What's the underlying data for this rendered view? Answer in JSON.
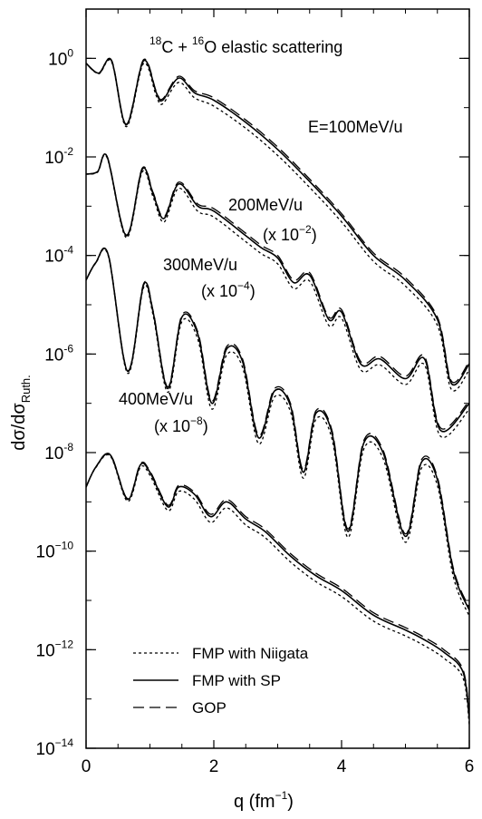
{
  "chart_data": {
    "type": "line",
    "title": {
      "pre": "",
      "sup1": "18",
      "mid": "C + ",
      "sup2": "16",
      "post": "O elastic scattering"
    },
    "xlabel": {
      "main": "q (fm",
      "sup": "−1",
      "post": ")"
    },
    "ylabel": {
      "main": "dσ/dσ",
      "sub": "Ruth."
    },
    "xlim": [
      0,
      6
    ],
    "ylim_log10": [
      -14,
      1
    ],
    "log_y": true,
    "grid": false,
    "x_ticks": [
      "0",
      "2",
      "4",
      "6"
    ],
    "y_ticks": [
      {
        "base": "10",
        "exp": "0"
      },
      {
        "base": "10",
        "exp": "-2"
      },
      {
        "base": "10",
        "exp": "-4"
      },
      {
        "base": "10",
        "exp": "-6"
      },
      {
        "base": "10",
        "exp": "-8"
      },
      {
        "base": "10",
        "exp": "−10"
      },
      {
        "base": "10",
        "exp": "−12"
      },
      {
        "base": "10",
        "exp": "−14"
      }
    ],
    "legend": {
      "placement": "bottom-left",
      "entries": [
        "FMP with Niigata",
        "FMP with SP",
        "GOP"
      ]
    },
    "annotations": [
      {
        "text": "E=100MeV/u"
      },
      {
        "text": "200MeV/u"
      },
      {
        "pre": "(x 10",
        "sup": "−2",
        "post": ")"
      },
      {
        "text": "300MeV/u"
      },
      {
        "pre": "(x 10",
        "sup": "−4",
        "post": ")"
      },
      {
        "text": "400MeV/u"
      },
      {
        "pre": "(x 10",
        "sup": "−8",
        "post": ")"
      }
    ],
    "series": [
      {
        "energy": "E=100MeV/u",
        "scale": 1,
        "x": [
          0.0,
          0.2,
          0.4,
          0.63,
          0.9,
          1.1,
          1.2,
          1.45,
          1.7,
          2.0,
          2.5,
          3.0,
          3.5,
          4.0,
          4.5,
          5.0,
          5.5,
          5.72,
          6.0
        ],
        "log10_y": [
          -0.1,
          -0.3,
          -0.05,
          -1.35,
          -0.05,
          -0.7,
          -0.85,
          -0.4,
          -0.7,
          -0.85,
          -1.3,
          -1.85,
          -2.5,
          -3.2,
          -4.0,
          -4.5,
          -5.3,
          -6.6,
          -6.2
        ]
      },
      {
        "energy": "200MeV/u",
        "scale": 0.01,
        "x": [
          0.0,
          0.18,
          0.33,
          0.63,
          0.88,
          1.05,
          1.22,
          1.45,
          1.75,
          2.0,
          2.5,
          2.75,
          3.0,
          3.25,
          3.5,
          3.8,
          4.0,
          4.3,
          4.6,
          5.0,
          5.3,
          5.55,
          6.0
        ],
        "log10_y": [
          -2.35,
          -2.3,
          -2.0,
          -3.6,
          -2.25,
          -2.75,
          -3.25,
          -2.55,
          -3.0,
          -3.1,
          -3.6,
          -3.85,
          -4.05,
          -4.55,
          -4.4,
          -5.3,
          -5.15,
          -6.2,
          -6.1,
          -6.5,
          -6.1,
          -7.55,
          -7.0
        ]
      },
      {
        "energy": "300MeV/u",
        "scale": 0.0001,
        "x": [
          0.0,
          0.15,
          0.35,
          0.65,
          0.9,
          1.05,
          1.28,
          1.5,
          1.75,
          1.97,
          2.2,
          2.45,
          2.7,
          2.95,
          3.2,
          3.4,
          3.6,
          3.85,
          4.1,
          4.35,
          4.65,
          5.0,
          5.25,
          5.5,
          5.75,
          6.0
        ],
        "log10_y": [
          -4.5,
          -4.15,
          -4.0,
          -6.35,
          -4.6,
          -5.15,
          -6.7,
          -5.25,
          -5.6,
          -7.0,
          -5.9,
          -6.15,
          -7.7,
          -6.75,
          -7.05,
          -8.4,
          -7.2,
          -7.6,
          -9.6,
          -7.8,
          -8.0,
          -9.7,
          -8.2,
          -8.55,
          -10.4,
          -11.2
        ]
      },
      {
        "energy": "400MeV/u",
        "scale": 1e-08,
        "x": [
          0.0,
          0.15,
          0.38,
          0.65,
          0.85,
          1.0,
          1.28,
          1.45,
          1.7,
          1.95,
          2.2,
          2.5,
          2.8,
          3.2,
          3.6,
          4.0,
          4.5,
          5.0,
          5.3,
          5.6,
          5.9,
          6.0
        ],
        "log10_y": [
          -8.7,
          -8.3,
          -8.05,
          -8.95,
          -8.25,
          -8.4,
          -9.1,
          -8.7,
          -8.85,
          -9.3,
          -9.0,
          -9.35,
          -9.6,
          -10.1,
          -10.5,
          -10.8,
          -11.3,
          -11.6,
          -11.8,
          -12.05,
          -12.45,
          -13.4
        ]
      }
    ]
  }
}
